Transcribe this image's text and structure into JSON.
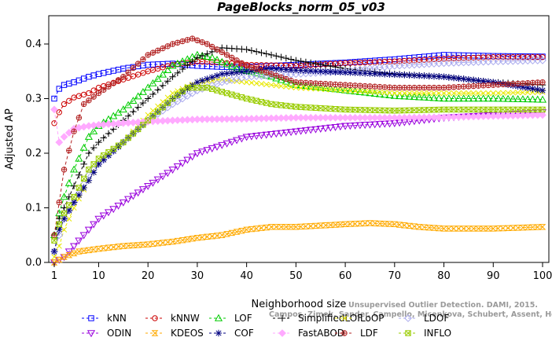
{
  "chart_data": {
    "type": "line",
    "title": "PageBlocks_norm_05_v03",
    "xlabel": "Neighborhood size",
    "ylabel": "Adjusted AP",
    "xlim": [
      1,
      100
    ],
    "ylim": [
      0,
      0.42
    ],
    "xticks": [
      1,
      10,
      20,
      30,
      40,
      50,
      60,
      70,
      80,
      90,
      100
    ],
    "yticks": [
      0.0,
      0.1,
      0.2,
      0.3,
      0.4
    ],
    "xtick_labels": [
      "1",
      "10",
      "20",
      "30",
      "40",
      "50",
      "60",
      "70",
      "80",
      "90",
      "100"
    ],
    "ytick_labels": [
      "0.0",
      "0.1",
      "0.2",
      "0.3",
      "0.4"
    ],
    "legend_position": "bottom",
    "watermark": [
      "Unsupervised Outlier Detection. DAMI, 2015.",
      "Campos, Zimek, Sander, Campello, Micenkova, Schubert, Assent, Houle"
    ],
    "series": [
      {
        "name": "kNN",
        "color": "#0000ff",
        "marker": "square",
        "style": "dashed",
        "points": [
          [
            1,
            0.3
          ],
          [
            2,
            0.318
          ],
          [
            3,
            0.325
          ],
          [
            5,
            0.33
          ],
          [
            8,
            0.34
          ],
          [
            10,
            0.345
          ],
          [
            15,
            0.355
          ],
          [
            20,
            0.362
          ],
          [
            25,
            0.364
          ],
          [
            30,
            0.36
          ],
          [
            35,
            0.358
          ],
          [
            40,
            0.358
          ],
          [
            50,
            0.362
          ],
          [
            60,
            0.366
          ],
          [
            70,
            0.372
          ],
          [
            80,
            0.38
          ],
          [
            90,
            0.378
          ],
          [
            100,
            0.377
          ]
        ]
      },
      {
        "name": "kNNW",
        "color": "#cc0000",
        "marker": "circle",
        "style": "dashed",
        "points": [
          [
            1,
            0.255
          ],
          [
            2,
            0.275
          ],
          [
            3,
            0.29
          ],
          [
            5,
            0.302
          ],
          [
            8,
            0.31
          ],
          [
            10,
            0.32
          ],
          [
            15,
            0.335
          ],
          [
            20,
            0.35
          ],
          [
            25,
            0.362
          ],
          [
            30,
            0.368
          ],
          [
            35,
            0.366
          ],
          [
            40,
            0.362
          ],
          [
            50,
            0.36
          ],
          [
            60,
            0.365
          ],
          [
            70,
            0.368
          ],
          [
            80,
            0.373
          ],
          [
            90,
            0.376
          ],
          [
            100,
            0.376
          ]
        ]
      },
      {
        "name": "LOF",
        "color": "#00cc00",
        "marker": "triangle-up",
        "style": "dashed",
        "points": [
          [
            1,
            0.05
          ],
          [
            2,
            0.09
          ],
          [
            3,
            0.12
          ],
          [
            5,
            0.17
          ],
          [
            8,
            0.23
          ],
          [
            10,
            0.25
          ],
          [
            15,
            0.28
          ],
          [
            20,
            0.32
          ],
          [
            25,
            0.36
          ],
          [
            30,
            0.38
          ],
          [
            33,
            0.375
          ],
          [
            38,
            0.355
          ],
          [
            45,
            0.34
          ],
          [
            50,
            0.325
          ],
          [
            60,
            0.315
          ],
          [
            70,
            0.305
          ],
          [
            80,
            0.3
          ],
          [
            90,
            0.3
          ],
          [
            100,
            0.298
          ]
        ]
      },
      {
        "name": "SimplifiedLOF",
        "color": "#000000",
        "marker": "plus",
        "style": "dashed",
        "points": [
          [
            1,
            0.05
          ],
          [
            2,
            0.08
          ],
          [
            3,
            0.1
          ],
          [
            5,
            0.14
          ],
          [
            8,
            0.2
          ],
          [
            10,
            0.22
          ],
          [
            15,
            0.26
          ],
          [
            20,
            0.3
          ],
          [
            25,
            0.34
          ],
          [
            30,
            0.375
          ],
          [
            35,
            0.393
          ],
          [
            40,
            0.39
          ],
          [
            45,
            0.38
          ],
          [
            50,
            0.37
          ],
          [
            60,
            0.355
          ],
          [
            70,
            0.345
          ],
          [
            80,
            0.34
          ],
          [
            90,
            0.33
          ],
          [
            100,
            0.325
          ]
        ]
      },
      {
        "name": "LoOP",
        "color": "#e8e800",
        "marker": "x",
        "style": "dashed",
        "points": [
          [
            1,
            0.01
          ],
          [
            2,
            0.03
          ],
          [
            3,
            0.06
          ],
          [
            5,
            0.1
          ],
          [
            8,
            0.15
          ],
          [
            10,
            0.18
          ],
          [
            15,
            0.22
          ],
          [
            20,
            0.27
          ],
          [
            25,
            0.31
          ],
          [
            30,
            0.33
          ],
          [
            35,
            0.335
          ],
          [
            40,
            0.33
          ],
          [
            50,
            0.32
          ],
          [
            60,
            0.315
          ],
          [
            70,
            0.31
          ],
          [
            80,
            0.31
          ],
          [
            90,
            0.31
          ],
          [
            100,
            0.312
          ]
        ]
      },
      {
        "name": "LDOF",
        "color": "#aaaaee",
        "marker": "diamond",
        "style": "dashed",
        "points": [
          [
            1,
            0.02
          ],
          [
            2,
            0.05
          ],
          [
            3,
            0.08
          ],
          [
            5,
            0.11
          ],
          [
            8,
            0.16
          ],
          [
            10,
            0.18
          ],
          [
            15,
            0.22
          ],
          [
            20,
            0.26
          ],
          [
            25,
            0.29
          ],
          [
            30,
            0.315
          ],
          [
            35,
            0.33
          ],
          [
            40,
            0.34
          ],
          [
            50,
            0.345
          ],
          [
            60,
            0.35
          ],
          [
            70,
            0.36
          ],
          [
            80,
            0.365
          ],
          [
            90,
            0.368
          ],
          [
            100,
            0.37
          ]
        ]
      },
      {
        "name": "ODIN",
        "color": "#9900dd",
        "marker": "triangle-down",
        "style": "dashed",
        "points": [
          [
            1,
            0.0
          ],
          [
            3,
            0.01
          ],
          [
            5,
            0.03
          ],
          [
            8,
            0.06
          ],
          [
            10,
            0.08
          ],
          [
            15,
            0.11
          ],
          [
            20,
            0.14
          ],
          [
            25,
            0.17
          ],
          [
            30,
            0.2
          ],
          [
            35,
            0.215
          ],
          [
            40,
            0.23
          ],
          [
            50,
            0.24
          ],
          [
            60,
            0.25
          ],
          [
            70,
            0.255
          ],
          [
            80,
            0.265
          ],
          [
            90,
            0.27
          ],
          [
            100,
            0.275
          ]
        ]
      },
      {
        "name": "KDEOS",
        "color": "#ffaa00",
        "marker": "hourglass",
        "style": "dashed",
        "points": [
          [
            1,
            0.0
          ],
          [
            3,
            0.01
          ],
          [
            6,
            0.02
          ],
          [
            10,
            0.025
          ],
          [
            15,
            0.03
          ],
          [
            20,
            0.033
          ],
          [
            25,
            0.038
          ],
          [
            30,
            0.045
          ],
          [
            35,
            0.05
          ],
          [
            40,
            0.06
          ],
          [
            45,
            0.065
          ],
          [
            50,
            0.065
          ],
          [
            60,
            0.07
          ],
          [
            65,
            0.072
          ],
          [
            70,
            0.07
          ],
          [
            75,
            0.065
          ],
          [
            80,
            0.062
          ],
          [
            90,
            0.062
          ],
          [
            100,
            0.065
          ]
        ]
      },
      {
        "name": "COF",
        "color": "#000080",
        "marker": "asterisk",
        "style": "dashed",
        "points": [
          [
            1,
            0.02
          ],
          [
            2,
            0.06
          ],
          [
            3,
            0.08
          ],
          [
            5,
            0.11
          ],
          [
            8,
            0.15
          ],
          [
            10,
            0.18
          ],
          [
            15,
            0.22
          ],
          [
            20,
            0.26
          ],
          [
            25,
            0.3
          ],
          [
            30,
            0.33
          ],
          [
            35,
            0.345
          ],
          [
            40,
            0.35
          ],
          [
            45,
            0.355
          ],
          [
            50,
            0.352
          ],
          [
            60,
            0.348
          ],
          [
            70,
            0.344
          ],
          [
            80,
            0.34
          ],
          [
            90,
            0.33
          ],
          [
            100,
            0.315
          ]
        ]
      },
      {
        "name": "FastABOD",
        "color": "#ffaaff",
        "marker": "diamond-filled",
        "style": "dashed",
        "points": [
          [
            1,
            0.28
          ],
          [
            2,
            0.22
          ],
          [
            3,
            0.23
          ],
          [
            5,
            0.245
          ],
          [
            8,
            0.25
          ],
          [
            10,
            0.252
          ],
          [
            15,
            0.255
          ],
          [
            20,
            0.258
          ],
          [
            25,
            0.26
          ],
          [
            30,
            0.262
          ],
          [
            40,
            0.263
          ],
          [
            50,
            0.265
          ],
          [
            60,
            0.265
          ],
          [
            70,
            0.265
          ],
          [
            80,
            0.266
          ],
          [
            90,
            0.268
          ],
          [
            100,
            0.27
          ]
        ]
      },
      {
        "name": "LDF",
        "color": "#b22222",
        "marker": "circle-plus",
        "style": "dashed",
        "points": [
          [
            1,
            0.05
          ],
          [
            2,
            0.11
          ],
          [
            3,
            0.17
          ],
          [
            5,
            0.24
          ],
          [
            7,
            0.29
          ],
          [
            10,
            0.31
          ],
          [
            15,
            0.34
          ],
          [
            20,
            0.38
          ],
          [
            25,
            0.4
          ],
          [
            29,
            0.41
          ],
          [
            32,
            0.4
          ],
          [
            36,
            0.38
          ],
          [
            40,
            0.36
          ],
          [
            50,
            0.33
          ],
          [
            60,
            0.325
          ],
          [
            70,
            0.32
          ],
          [
            80,
            0.32
          ],
          [
            90,
            0.325
          ],
          [
            100,
            0.33
          ]
        ]
      },
      {
        "name": "INFLO",
        "color": "#99cc00",
        "marker": "square-x",
        "style": "dashed",
        "points": [
          [
            1,
            0.04
          ],
          [
            2,
            0.07
          ],
          [
            3,
            0.09
          ],
          [
            5,
            0.12
          ],
          [
            8,
            0.17
          ],
          [
            10,
            0.19
          ],
          [
            15,
            0.22
          ],
          [
            20,
            0.26
          ],
          [
            25,
            0.3
          ],
          [
            28,
            0.32
          ],
          [
            32,
            0.32
          ],
          [
            36,
            0.31
          ],
          [
            40,
            0.3
          ],
          [
            45,
            0.29
          ],
          [
            50,
            0.285
          ],
          [
            60,
            0.28
          ],
          [
            70,
            0.278
          ],
          [
            80,
            0.28
          ],
          [
            90,
            0.28
          ],
          [
            100,
            0.28
          ]
        ]
      }
    ]
  }
}
